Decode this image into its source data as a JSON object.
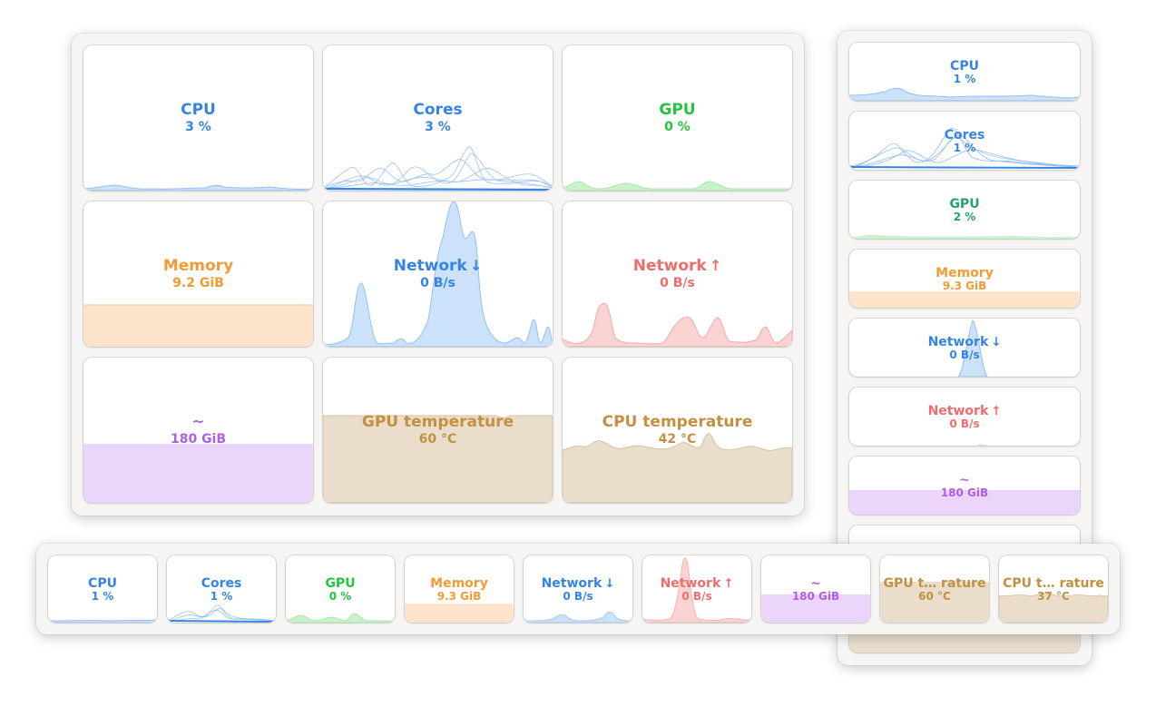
{
  "colors": {
    "blue": "#3584e4",
    "blue_fill": "#cce2fb",
    "green": "#33d17a",
    "green_fill": "#c9f2c9",
    "orange": "#f39a35",
    "orange_fill": "#fde3c9",
    "red": "#ed6d6d",
    "red_fill": "#fbd3d3",
    "purple": "#b15ee6",
    "purple_fill": "#ebd5fb",
    "brown": "#c39041",
    "brown_fill": "#eaddcc"
  },
  "grid_window": {
    "tiles": [
      {
        "title": "CPU",
        "value": "3 %"
      },
      {
        "title": "Cores",
        "value": "3 %"
      },
      {
        "title": "GPU",
        "value": "0 %"
      },
      {
        "title": "Memory",
        "value": "9.2 GiB"
      },
      {
        "title": "Network",
        "arrow": "↓",
        "value": "0 B/s"
      },
      {
        "title": "Network",
        "arrow": "↑",
        "value": "0 B/s"
      },
      {
        "title": "~",
        "value": "180 GiB"
      },
      {
        "title": "GPU temperature",
        "value": "60 °C"
      },
      {
        "title": "CPU temperature",
        "value": "42 °C"
      }
    ]
  },
  "column_window": {
    "tiles": [
      {
        "title": "CPU",
        "value": "1 %"
      },
      {
        "title": "Cores",
        "value": "1 %"
      },
      {
        "title": "GPU",
        "value": "2 %"
      },
      {
        "title": "Memory",
        "value": "9.3 GiB"
      },
      {
        "title": "Network",
        "arrow": "↓",
        "value": "0 B/s"
      },
      {
        "title": "Network",
        "arrow": "↑",
        "value": "0 B/s"
      },
      {
        "title": "~",
        "value": "180 GiB"
      }
    ]
  },
  "bar_window": {
    "tiles": [
      {
        "title": "CPU",
        "value": "1 %"
      },
      {
        "title": "Cores",
        "value": "1 %"
      },
      {
        "title": "GPU",
        "value": "0 %"
      },
      {
        "title": "Memory",
        "value": "9.3 GiB"
      },
      {
        "title": "Network",
        "arrow": "↓",
        "value": "0 B/s"
      },
      {
        "title": "Network",
        "arrow": "↑",
        "value": "0 B/s"
      },
      {
        "title": "~",
        "value": "180 GiB"
      },
      {
        "title": "GPU t… rature",
        "value": "60 °C"
      },
      {
        "title": "CPU t… rature",
        "value": "37 °C"
      }
    ]
  }
}
